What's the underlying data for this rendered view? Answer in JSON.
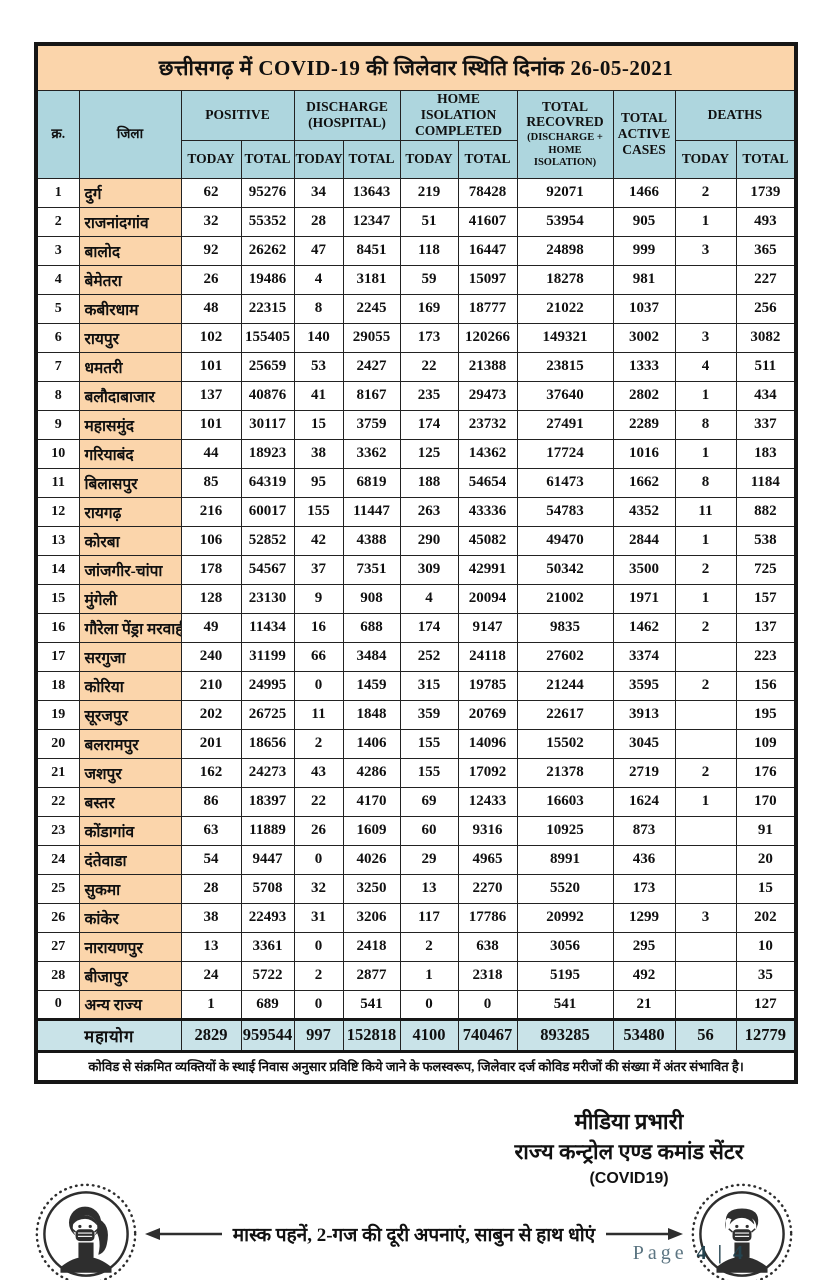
{
  "page": {
    "title": "छत्तीसगढ़ में COVID-19 की जिलेवार स्थिति दिनांक 26-05-2021",
    "footnote": "कोविड से संक्रमित व्यक्तियों के स्थाई निवास अनुसार प्रविष्टि किये जाने के फलस्वरूप, जिलेवार दर्ज कोविड मरीजों की संख्या में अंतर संभावित है।",
    "page_indicator": {
      "label": "Page",
      "value": "4 | 4"
    }
  },
  "table": {
    "headers": {
      "sn": "क्र.",
      "district": "जिला",
      "positive": "POSITIVE",
      "discharge": "DISCHARGE (HOSPITAL)",
      "home_isolation": "HOME ISOLATION COMPLETED",
      "recovered_main": "TOTAL RECOVRED",
      "recovered_sub": "(DISCHARGE + HOME ISOLATION)",
      "active": "TOTAL ACTIVE CASES",
      "deaths": "DEATHS",
      "today": "TODAY",
      "total": "TOTAL"
    },
    "rows": [
      {
        "sn": "1",
        "district": "दुर्ग",
        "values": [
          "62",
          "95276",
          "34",
          "13643",
          "219",
          "78428",
          "92071",
          "1466",
          "2",
          "1739"
        ]
      },
      {
        "sn": "2",
        "district": "राजनांदगांव",
        "values": [
          "32",
          "55352",
          "28",
          "12347",
          "51",
          "41607",
          "53954",
          "905",
          "1",
          "493"
        ]
      },
      {
        "sn": "3",
        "district": "बालोद",
        "values": [
          "92",
          "26262",
          "47",
          "8451",
          "118",
          "16447",
          "24898",
          "999",
          "3",
          "365"
        ]
      },
      {
        "sn": "4",
        "district": "बेमेतरा",
        "values": [
          "26",
          "19486",
          "4",
          "3181",
          "59",
          "15097",
          "18278",
          "981",
          "",
          "227"
        ]
      },
      {
        "sn": "5",
        "district": "कबीरधाम",
        "values": [
          "48",
          "22315",
          "8",
          "2245",
          "169",
          "18777",
          "21022",
          "1037",
          "",
          "256"
        ]
      },
      {
        "sn": "6",
        "district": "रायपुर",
        "values": [
          "102",
          "155405",
          "140",
          "29055",
          "173",
          "120266",
          "149321",
          "3002",
          "3",
          "3082"
        ]
      },
      {
        "sn": "7",
        "district": "धमतरी",
        "values": [
          "101",
          "25659",
          "53",
          "2427",
          "22",
          "21388",
          "23815",
          "1333",
          "4",
          "511"
        ]
      },
      {
        "sn": "8",
        "district": "बलौदाबाजार",
        "values": [
          "137",
          "40876",
          "41",
          "8167",
          "235",
          "29473",
          "37640",
          "2802",
          "1",
          "434"
        ]
      },
      {
        "sn": "9",
        "district": "महासमुंद",
        "values": [
          "101",
          "30117",
          "15",
          "3759",
          "174",
          "23732",
          "27491",
          "2289",
          "8",
          "337"
        ]
      },
      {
        "sn": "10",
        "district": "गरियाबंद",
        "values": [
          "44",
          "18923",
          "38",
          "3362",
          "125",
          "14362",
          "17724",
          "1016",
          "1",
          "183"
        ]
      },
      {
        "sn": "11",
        "district": "बिलासपुर",
        "values": [
          "85",
          "64319",
          "95",
          "6819",
          "188",
          "54654",
          "61473",
          "1662",
          "8",
          "1184"
        ]
      },
      {
        "sn": "12",
        "district": "रायगढ़",
        "values": [
          "216",
          "60017",
          "155",
          "11447",
          "263",
          "43336",
          "54783",
          "4352",
          "11",
          "882"
        ]
      },
      {
        "sn": "13",
        "district": "कोरबा",
        "values": [
          "106",
          "52852",
          "42",
          "4388",
          "290",
          "45082",
          "49470",
          "2844",
          "1",
          "538"
        ]
      },
      {
        "sn": "14",
        "district": "जांजगीर-चांपा",
        "values": [
          "178",
          "54567",
          "37",
          "7351",
          "309",
          "42991",
          "50342",
          "3500",
          "2",
          "725"
        ]
      },
      {
        "sn": "15",
        "district": "मुंगेली",
        "values": [
          "128",
          "23130",
          "9",
          "908",
          "4",
          "20094",
          "21002",
          "1971",
          "1",
          "157"
        ]
      },
      {
        "sn": "16",
        "district": "गौरेला पेंड्रा मरवाही",
        "values": [
          "49",
          "11434",
          "16",
          "688",
          "174",
          "9147",
          "9835",
          "1462",
          "2",
          "137"
        ]
      },
      {
        "sn": "17",
        "district": "सरगुजा",
        "values": [
          "240",
          "31199",
          "66",
          "3484",
          "252",
          "24118",
          "27602",
          "3374",
          "",
          "223"
        ]
      },
      {
        "sn": "18",
        "district": "कोरिया",
        "values": [
          "210",
          "24995",
          "0",
          "1459",
          "315",
          "19785",
          "21244",
          "3595",
          "2",
          "156"
        ]
      },
      {
        "sn": "19",
        "district": "सूरजपुर",
        "values": [
          "202",
          "26725",
          "11",
          "1848",
          "359",
          "20769",
          "22617",
          "3913",
          "",
          "195"
        ]
      },
      {
        "sn": "20",
        "district": "बलरामपुर",
        "values": [
          "201",
          "18656",
          "2",
          "1406",
          "155",
          "14096",
          "15502",
          "3045",
          "",
          "109"
        ]
      },
      {
        "sn": "21",
        "district": "जशपुर",
        "values": [
          "162",
          "24273",
          "43",
          "4286",
          "155",
          "17092",
          "21378",
          "2719",
          "2",
          "176"
        ]
      },
      {
        "sn": "22",
        "district": "बस्तर",
        "values": [
          "86",
          "18397",
          "22",
          "4170",
          "69",
          "12433",
          "16603",
          "1624",
          "1",
          "170"
        ]
      },
      {
        "sn": "23",
        "district": "कोंडागांव",
        "values": [
          "63",
          "11889",
          "26",
          "1609",
          "60",
          "9316",
          "10925",
          "873",
          "",
          "91"
        ]
      },
      {
        "sn": "24",
        "district": "दंतेवाडा",
        "values": [
          "54",
          "9447",
          "0",
          "4026",
          "29",
          "4965",
          "8991",
          "436",
          "",
          "20"
        ]
      },
      {
        "sn": "25",
        "district": "सुकमा",
        "values": [
          "28",
          "5708",
          "32",
          "3250",
          "13",
          "2270",
          "5520",
          "173",
          "",
          "15"
        ]
      },
      {
        "sn": "26",
        "district": "कांकेर",
        "values": [
          "38",
          "22493",
          "31",
          "3206",
          "117",
          "17786",
          "20992",
          "1299",
          "3",
          "202"
        ]
      },
      {
        "sn": "27",
        "district": "नारायणपुर",
        "values": [
          "13",
          "3361",
          "0",
          "2418",
          "2",
          "638",
          "3056",
          "295",
          "",
          "10"
        ]
      },
      {
        "sn": "28",
        "district": "बीजापुर",
        "values": [
          "24",
          "5722",
          "2",
          "2877",
          "1",
          "2318",
          "5195",
          "492",
          "",
          "35"
        ]
      },
      {
        "sn": "0",
        "district": "अन्य राज्य",
        "values": [
          "1",
          "689",
          "0",
          "541",
          "0",
          "0",
          "541",
          "21",
          "",
          "127"
        ]
      }
    ],
    "total_row": {
      "label": "महायोग",
      "values": [
        "2829",
        "959544",
        "997",
        "152818",
        "4100",
        "740467",
        "893285",
        "53480",
        "56",
        "12779"
      ]
    }
  },
  "signature": {
    "line1": "मीडिया प्रभारी",
    "line2": "राज्य कन्ट्रोल एण्ड कमांड सेंटर",
    "line3": "(COVID19)"
  },
  "banner": {
    "text": "मास्क पहनें, 2-गज की दूरी अपनाएं, साबुन से हाथ धोएं"
  },
  "colors": {
    "peach": "#fbd5ab",
    "hblue": "#aed6de",
    "tblue": "#c9e3e8",
    "ink": "#161616"
  }
}
